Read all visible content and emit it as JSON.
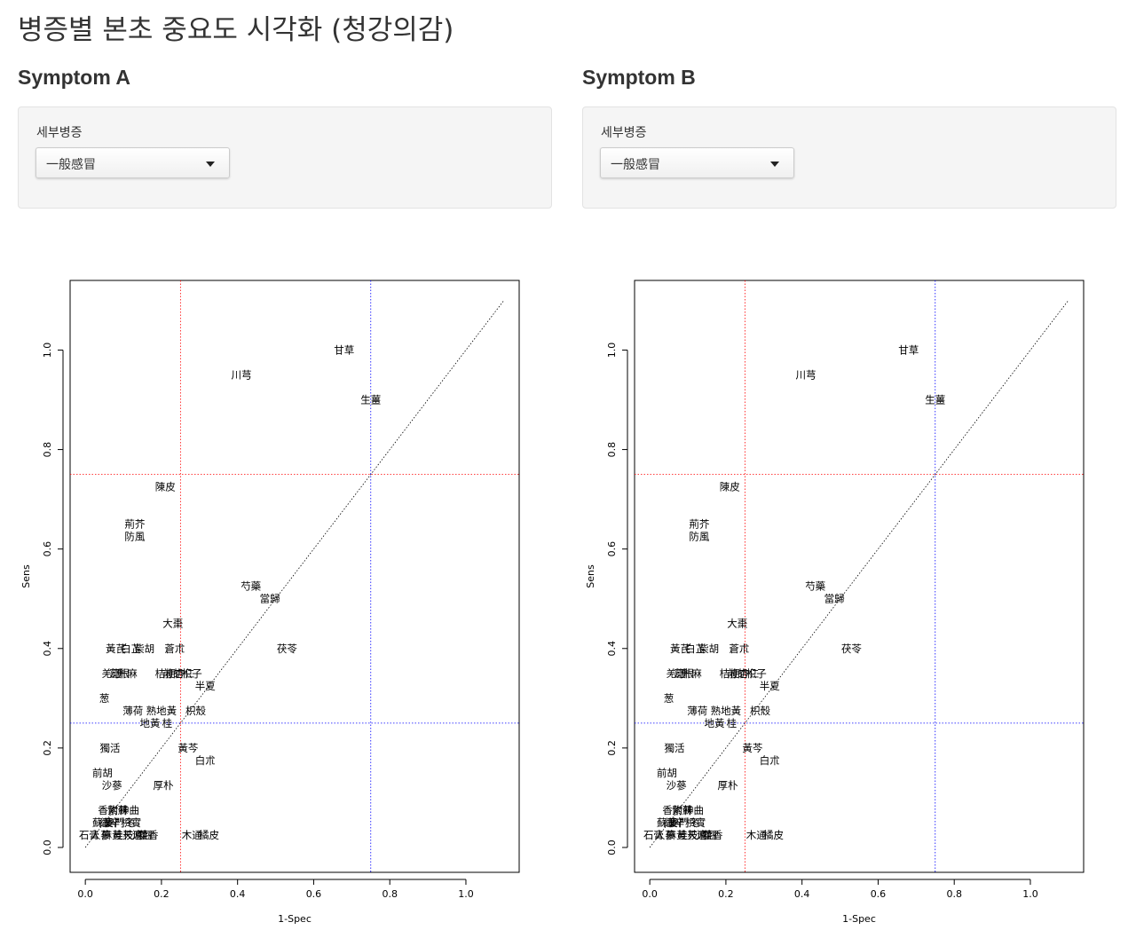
{
  "page": {
    "title": "병증별 본초 중요도 시각화 (청강의감)"
  },
  "panels": [
    {
      "heading": "Symptom A",
      "selector": {
        "label": "세부병증",
        "value": "一般感冒"
      },
      "chart_data": {
        "type": "scatter",
        "title": "",
        "xlabel": "1-Spec",
        "ylabel": "Sens",
        "xlim": [
          -0.04,
          1.14
        ],
        "ylim": [
          -0.05,
          1.14
        ],
        "xticks": [
          0.0,
          0.2,
          0.4,
          0.6,
          0.8,
          1.0
        ],
        "yticks": [
          0.0,
          0.2,
          0.4,
          0.6,
          0.8,
          1.0
        ],
        "xtick_labels": [
          "0.0",
          "0.2",
          "0.4",
          "0.6",
          "0.8",
          "1.0"
        ],
        "ytick_labels": [
          "0.0",
          "0.2",
          "0.4",
          "0.6",
          "0.8",
          "1.0"
        ],
        "diagonal": [
          0,
          1.1
        ],
        "reference_lines": [
          {
            "axis": "x",
            "value": 0.25,
            "color": "#ff0000"
          },
          {
            "axis": "y",
            "value": 0.75,
            "color": "#ff0000"
          },
          {
            "axis": "x",
            "value": 0.75,
            "color": "#0000ff"
          },
          {
            "axis": "y",
            "value": 0.25,
            "color": "#0000ff"
          }
        ],
        "points": [
          {
            "label": "甘草",
            "x": 0.68,
            "y": 1.0
          },
          {
            "label": "川芎",
            "x": 0.41,
            "y": 0.95
          },
          {
            "label": "生薑",
            "x": 0.75,
            "y": 0.9
          },
          {
            "label": "陳皮",
            "x": 0.21,
            "y": 0.725
          },
          {
            "label": "荊芥",
            "x": 0.13,
            "y": 0.65
          },
          {
            "label": "防風",
            "x": 0.13,
            "y": 0.625
          },
          {
            "label": "芍藥",
            "x": 0.435,
            "y": 0.525
          },
          {
            "label": "當歸",
            "x": 0.485,
            "y": 0.5
          },
          {
            "label": "大棗",
            "x": 0.23,
            "y": 0.45
          },
          {
            "label": "黃芪",
            "x": 0.08,
            "y": 0.4
          },
          {
            "label": "白芷",
            "x": 0.12,
            "y": 0.4
          },
          {
            "label": "柴胡",
            "x": 0.155,
            "y": 0.4
          },
          {
            "label": "蒼朮",
            "x": 0.235,
            "y": 0.4
          },
          {
            "label": "茯苓",
            "x": 0.53,
            "y": 0.4
          },
          {
            "label": "羌活",
            "x": 0.07,
            "y": 0.35
          },
          {
            "label": "葛根",
            "x": 0.09,
            "y": 0.35
          },
          {
            "label": "升麻",
            "x": 0.11,
            "y": 0.35
          },
          {
            "label": "桔梗",
            "x": 0.21,
            "y": 0.35
          },
          {
            "label": "前胡",
            "x": 0.23,
            "y": 0.35
          },
          {
            "label": "杏仁",
            "x": 0.26,
            "y": 0.35
          },
          {
            "label": "枳子",
            "x": 0.28,
            "y": 0.35
          },
          {
            "label": "半夏",
            "x": 0.315,
            "y": 0.325
          },
          {
            "label": "葱",
            "x": 0.05,
            "y": 0.3
          },
          {
            "label": "薄荷",
            "x": 0.125,
            "y": 0.275
          },
          {
            "label": "熟地黃",
            "x": 0.2,
            "y": 0.275
          },
          {
            "label": "枳殼",
            "x": 0.29,
            "y": 0.275
          },
          {
            "label": "地黃",
            "x": 0.17,
            "y": 0.25
          },
          {
            "label": "桂",
            "x": 0.215,
            "y": 0.25
          },
          {
            "label": "獨活",
            "x": 0.065,
            "y": 0.2
          },
          {
            "label": "黃芩",
            "x": 0.27,
            "y": 0.2
          },
          {
            "label": "白朮",
            "x": 0.315,
            "y": 0.175
          },
          {
            "label": "前胡",
            "x": 0.045,
            "y": 0.15
          },
          {
            "label": "沙蔘",
            "x": 0.07,
            "y": 0.125
          },
          {
            "label": "厚朴",
            "x": 0.205,
            "y": 0.125
          },
          {
            "label": "香附",
            "x": 0.06,
            "y": 0.075
          },
          {
            "label": "紫蘇",
            "x": 0.085,
            "y": 0.075
          },
          {
            "label": "神曲",
            "x": 0.115,
            "y": 0.075
          },
          {
            "label": "蘇葉",
            "x": 0.045,
            "y": 0.05
          },
          {
            "label": "細辛",
            "x": 0.065,
            "y": 0.05
          },
          {
            "label": "麥門冬",
            "x": 0.09,
            "y": 0.05
          },
          {
            "label": "枳實",
            "x": 0.12,
            "y": 0.05
          },
          {
            "label": "石膏",
            "x": 0.01,
            "y": 0.025
          },
          {
            "label": "人蔘",
            "x": 0.04,
            "y": 0.025
          },
          {
            "label": "麻黃",
            "x": 0.07,
            "y": 0.025
          },
          {
            "label": "桂枝",
            "x": 0.1,
            "y": 0.025
          },
          {
            "label": "天麻",
            "x": 0.125,
            "y": 0.025
          },
          {
            "label": "連翹",
            "x": 0.15,
            "y": 0.025
          },
          {
            "label": "藿香",
            "x": 0.165,
            "y": 0.025
          },
          {
            "label": "木通",
            "x": 0.28,
            "y": 0.025
          },
          {
            "label": "橘皮",
            "x": 0.325,
            "y": 0.025
          }
        ]
      }
    },
    {
      "heading": "Symptom B",
      "selector": {
        "label": "세부병증",
        "value": "一般感冒"
      },
      "chart_data": {
        "type": "scatter",
        "title": "",
        "xlabel": "1-Spec",
        "ylabel": "Sens",
        "xlim": [
          -0.04,
          1.14
        ],
        "ylim": [
          -0.05,
          1.14
        ],
        "xticks": [
          0.0,
          0.2,
          0.4,
          0.6,
          0.8,
          1.0
        ],
        "yticks": [
          0.0,
          0.2,
          0.4,
          0.6,
          0.8,
          1.0
        ],
        "xtick_labels": [
          "0.0",
          "0.2",
          "0.4",
          "0.6",
          "0.8",
          "1.0"
        ],
        "ytick_labels": [
          "0.0",
          "0.2",
          "0.4",
          "0.6",
          "0.8",
          "1.0"
        ],
        "diagonal": [
          0,
          1.1
        ],
        "reference_lines": [
          {
            "axis": "x",
            "value": 0.25,
            "color": "#ff0000"
          },
          {
            "axis": "y",
            "value": 0.75,
            "color": "#ff0000"
          },
          {
            "axis": "x",
            "value": 0.75,
            "color": "#0000ff"
          },
          {
            "axis": "y",
            "value": 0.25,
            "color": "#0000ff"
          }
        ],
        "points": [
          {
            "label": "甘草",
            "x": 0.68,
            "y": 1.0
          },
          {
            "label": "川芎",
            "x": 0.41,
            "y": 0.95
          },
          {
            "label": "生薑",
            "x": 0.75,
            "y": 0.9
          },
          {
            "label": "陳皮",
            "x": 0.21,
            "y": 0.725
          },
          {
            "label": "荊芥",
            "x": 0.13,
            "y": 0.65
          },
          {
            "label": "防風",
            "x": 0.13,
            "y": 0.625
          },
          {
            "label": "芍藥",
            "x": 0.435,
            "y": 0.525
          },
          {
            "label": "當歸",
            "x": 0.485,
            "y": 0.5
          },
          {
            "label": "大棗",
            "x": 0.23,
            "y": 0.45
          },
          {
            "label": "黃芪",
            "x": 0.08,
            "y": 0.4
          },
          {
            "label": "白芷",
            "x": 0.12,
            "y": 0.4
          },
          {
            "label": "柴胡",
            "x": 0.155,
            "y": 0.4
          },
          {
            "label": "蒼朮",
            "x": 0.235,
            "y": 0.4
          },
          {
            "label": "茯苓",
            "x": 0.53,
            "y": 0.4
          },
          {
            "label": "羌活",
            "x": 0.07,
            "y": 0.35
          },
          {
            "label": "葛根",
            "x": 0.09,
            "y": 0.35
          },
          {
            "label": "升麻",
            "x": 0.11,
            "y": 0.35
          },
          {
            "label": "桔梗",
            "x": 0.21,
            "y": 0.35
          },
          {
            "label": "前胡",
            "x": 0.23,
            "y": 0.35
          },
          {
            "label": "杏仁",
            "x": 0.26,
            "y": 0.35
          },
          {
            "label": "枳子",
            "x": 0.28,
            "y": 0.35
          },
          {
            "label": "半夏",
            "x": 0.315,
            "y": 0.325
          },
          {
            "label": "葱",
            "x": 0.05,
            "y": 0.3
          },
          {
            "label": "薄荷",
            "x": 0.125,
            "y": 0.275
          },
          {
            "label": "熟地黃",
            "x": 0.2,
            "y": 0.275
          },
          {
            "label": "枳殼",
            "x": 0.29,
            "y": 0.275
          },
          {
            "label": "地黃",
            "x": 0.17,
            "y": 0.25
          },
          {
            "label": "桂",
            "x": 0.215,
            "y": 0.25
          },
          {
            "label": "獨活",
            "x": 0.065,
            "y": 0.2
          },
          {
            "label": "黃芩",
            "x": 0.27,
            "y": 0.2
          },
          {
            "label": "白朮",
            "x": 0.315,
            "y": 0.175
          },
          {
            "label": "前胡",
            "x": 0.045,
            "y": 0.15
          },
          {
            "label": "沙蔘",
            "x": 0.07,
            "y": 0.125
          },
          {
            "label": "厚朴",
            "x": 0.205,
            "y": 0.125
          },
          {
            "label": "香附",
            "x": 0.06,
            "y": 0.075
          },
          {
            "label": "紫蘇",
            "x": 0.085,
            "y": 0.075
          },
          {
            "label": "神曲",
            "x": 0.115,
            "y": 0.075
          },
          {
            "label": "蘇葉",
            "x": 0.045,
            "y": 0.05
          },
          {
            "label": "細辛",
            "x": 0.065,
            "y": 0.05
          },
          {
            "label": "麥門冬",
            "x": 0.09,
            "y": 0.05
          },
          {
            "label": "枳實",
            "x": 0.12,
            "y": 0.05
          },
          {
            "label": "石膏",
            "x": 0.01,
            "y": 0.025
          },
          {
            "label": "人蔘",
            "x": 0.04,
            "y": 0.025
          },
          {
            "label": "麻黃",
            "x": 0.07,
            "y": 0.025
          },
          {
            "label": "桂枝",
            "x": 0.1,
            "y": 0.025
          },
          {
            "label": "天麻",
            "x": 0.125,
            "y": 0.025
          },
          {
            "label": "連翹",
            "x": 0.15,
            "y": 0.025
          },
          {
            "label": "藿香",
            "x": 0.165,
            "y": 0.025
          },
          {
            "label": "木通",
            "x": 0.28,
            "y": 0.025
          },
          {
            "label": "橘皮",
            "x": 0.325,
            "y": 0.025
          }
        ]
      }
    }
  ]
}
